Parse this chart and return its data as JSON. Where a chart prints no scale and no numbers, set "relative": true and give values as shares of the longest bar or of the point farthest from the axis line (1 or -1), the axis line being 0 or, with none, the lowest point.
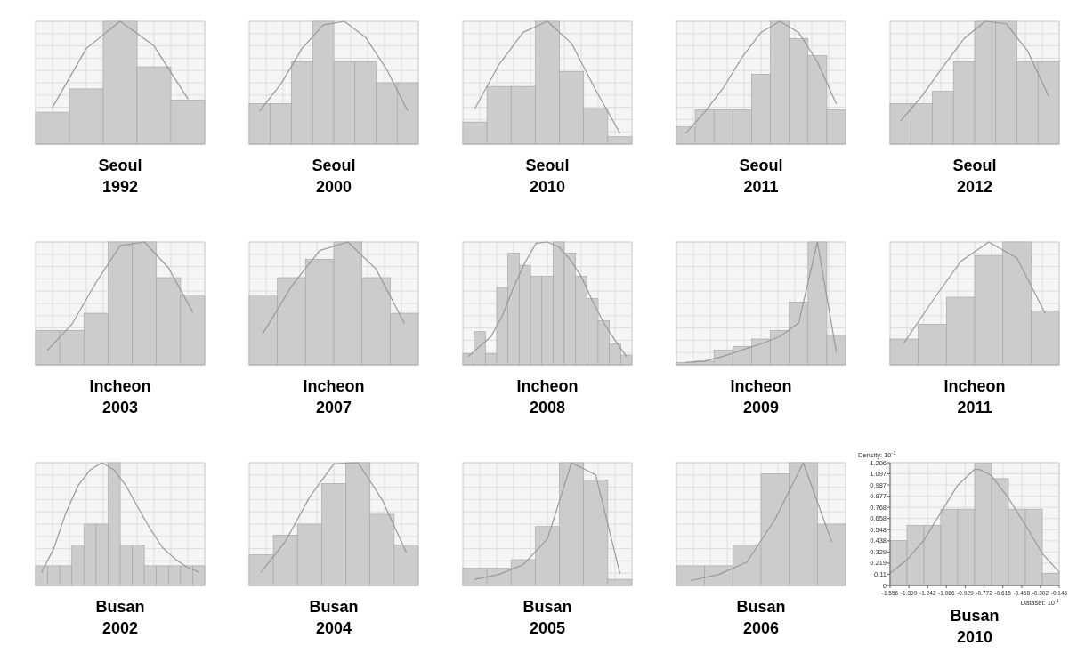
{
  "chart_data": [
    {
      "type": "bar",
      "title": "Seoul",
      "subtitle": "1992",
      "relative": true,
      "grid": true,
      "categories": [
        null,
        null,
        null,
        null,
        null
      ],
      "color": "#cccccc",
      "values": [
        0.26,
        0.45,
        1,
        0.63,
        0.36
      ]
    },
    {
      "type": "line",
      "relative": true,
      "categories": [
        null,
        null,
        null,
        null,
        null
      ],
      "color": "#999999",
      "values": [
        0.3,
        0.78,
        1,
        0.8,
        0.37
      ]
    },
    {
      "type": "bar",
      "title": "Seoul",
      "subtitle": "2000",
      "relative": true,
      "grid": true,
      "categories": [
        null,
        null,
        null,
        null,
        null,
        null,
        null,
        null
      ],
      "color": "#cccccc",
      "values": [
        0.33,
        0.33,
        0.67,
        1,
        0.67,
        0.67,
        0.5,
        0.5
      ]
    },
    {
      "type": "line",
      "relative": true,
      "categories": [
        null,
        null,
        null,
        null,
        null,
        null,
        null,
        null
      ],
      "color": "#999999",
      "values": [
        0.27,
        0.49,
        0.78,
        0.97,
        1,
        0.87,
        0.61,
        0.27
      ]
    },
    {
      "type": "bar",
      "title": "Seoul",
      "subtitle": "2010",
      "relative": true,
      "grid": true,
      "categories": [
        null,
        null,
        null,
        null,
        null,
        null,
        null
      ],
      "color": "#cccccc",
      "values": [
        0.18,
        0.47,
        0.47,
        1,
        0.59,
        0.29,
        0.06
      ]
    },
    {
      "type": "line",
      "relative": true,
      "categories": [
        null,
        null,
        null,
        null,
        null,
        null,
        null
      ],
      "color": "#999999",
      "values": [
        0.29,
        0.65,
        0.91,
        1,
        0.82,
        0.44,
        0.09
      ]
    },
    {
      "type": "bar",
      "title": "Seoul",
      "subtitle": "2011",
      "relative": true,
      "grid": true,
      "categories": [
        null,
        null,
        null,
        null,
        null,
        null,
        null,
        null,
        null
      ],
      "color": "#cccccc",
      "values": [
        0.14,
        0.28,
        0.28,
        0.28,
        0.57,
        1,
        0.86,
        0.72,
        0.28
      ]
    },
    {
      "type": "line",
      "relative": true,
      "categories": [
        null,
        null,
        null,
        null,
        null,
        null,
        null,
        null,
        null
      ],
      "color": "#999999",
      "values": [
        0.09,
        0.26,
        0.46,
        0.71,
        0.91,
        1,
        0.91,
        0.67,
        0.33
      ]
    },
    {
      "type": "bar",
      "title": "Seoul",
      "subtitle": "2012",
      "relative": true,
      "grid": true,
      "categories": [
        null,
        null,
        null,
        null,
        null,
        null,
        null,
        null
      ],
      "color": "#cccccc",
      "values": [
        0.33,
        0.33,
        0.43,
        0.67,
        1,
        1,
        0.67,
        0.67
      ]
    },
    {
      "type": "line",
      "relative": true,
      "categories": [
        null,
        null,
        null,
        null,
        null,
        null,
        null,
        null
      ],
      "color": "#999999",
      "values": [
        0.19,
        0.39,
        0.63,
        0.86,
        1,
        0.98,
        0.76,
        0.39
      ]
    },
    {
      "type": "bar",
      "title": "Incheon",
      "subtitle": "2003",
      "relative": true,
      "grid": true,
      "categories": [
        null,
        null,
        null,
        null,
        null,
        null,
        null
      ],
      "color": "#cccccc",
      "values": [
        0.28,
        0.28,
        0.42,
        1,
        1,
        0.71,
        0.57
      ]
    },
    {
      "type": "line",
      "relative": true,
      "categories": [
        null,
        null,
        null,
        null,
        null,
        null,
        null
      ],
      "color": "#999999",
      "values": [
        0.12,
        0.33,
        0.67,
        0.97,
        1,
        0.79,
        0.43
      ]
    },
    {
      "type": "bar",
      "title": "Incheon",
      "subtitle": "2007",
      "relative": true,
      "grid": true,
      "categories": [
        null,
        null,
        null,
        null,
        null,
        null
      ],
      "color": "#cccccc",
      "values": [
        0.57,
        0.71,
        0.86,
        1,
        0.71,
        0.42
      ]
    },
    {
      "type": "line",
      "relative": true,
      "categories": [
        null,
        null,
        null,
        null,
        null,
        null
      ],
      "color": "#999999",
      "values": [
        0.26,
        0.64,
        0.93,
        1,
        0.78,
        0.34
      ]
    },
    {
      "type": "bar",
      "title": "Incheon",
      "subtitle": "2008",
      "relative": true,
      "grid": true,
      "categories": [
        null,
        null,
        null,
        null,
        null,
        null,
        null,
        null,
        null,
        null,
        null,
        null,
        null,
        null,
        null
      ],
      "color": "#cccccc",
      "values": [
        0.09,
        0.27,
        0.09,
        0.63,
        0.91,
        0.81,
        0.72,
        0.72,
        1,
        0.91,
        0.72,
        0.54,
        0.36,
        0.17,
        0.08
      ]
    },
    {
      "type": "line",
      "relative": true,
      "categories": [
        null,
        null,
        null,
        null,
        null,
        null,
        null,
        null,
        null,
        null,
        null,
        null,
        null,
        null,
        null
      ],
      "color": "#999999",
      "values": [
        0.07,
        0.15,
        0.23,
        0.4,
        0.63,
        0.83,
        0.99,
        1,
        0.96,
        0.86,
        0.72,
        0.52,
        0.34,
        0.2,
        0.07
      ]
    },
    {
      "type": "bar",
      "title": "Incheon",
      "subtitle": "2009",
      "relative": true,
      "grid": true,
      "categories": [
        null,
        null,
        null,
        null,
        null,
        null,
        null,
        null,
        null
      ],
      "color": "#cccccc",
      "values": [
        0.02,
        0.03,
        0.12,
        0.15,
        0.21,
        0.28,
        0.51,
        1,
        0.24
      ]
    },
    {
      "type": "line",
      "relative": true,
      "categories": [
        null,
        null,
        null,
        null,
        null,
        null,
        null,
        null,
        null
      ],
      "color": "#999999",
      "values": [
        0.02,
        0.03,
        0.07,
        0.12,
        0.17,
        0.23,
        0.34,
        1,
        0.11
      ]
    },
    {
      "type": "bar",
      "title": "Incheon",
      "subtitle": "2011",
      "relative": true,
      "grid": true,
      "categories": [
        null,
        null,
        null,
        null,
        null,
        null
      ],
      "color": "#cccccc",
      "values": [
        0.21,
        0.33,
        0.55,
        0.89,
        1,
        0.44
      ]
    },
    {
      "type": "line",
      "relative": true,
      "categories": [
        null,
        null,
        null,
        null,
        null,
        null
      ],
      "color": "#999999",
      "values": [
        0.18,
        0.52,
        0.84,
        1,
        0.87,
        0.42
      ]
    },
    {
      "type": "bar",
      "title": "Busan",
      "subtitle": "2002",
      "relative": true,
      "grid": true,
      "categories": [
        null,
        null,
        null,
        null,
        null,
        null,
        null,
        null,
        null,
        null,
        null,
        null,
        null,
        null
      ],
      "color": "#cccccc",
      "values": [
        0.16,
        0.16,
        0.16,
        0.33,
        0.5,
        0.5,
        1,
        0.33,
        0.33,
        0.16,
        0.16,
        0.16,
        0.16,
        0.16
      ]
    },
    {
      "type": "line",
      "relative": true,
      "categories": [
        null,
        null,
        null,
        null,
        null,
        null,
        null,
        null,
        null,
        null,
        null,
        null,
        null,
        null
      ],
      "color": "#999999",
      "values": [
        0.11,
        0.3,
        0.59,
        0.81,
        0.94,
        1,
        0.94,
        0.81,
        0.63,
        0.46,
        0.31,
        0.22,
        0.15,
        0.11
      ]
    },
    {
      "type": "bar",
      "title": "Busan",
      "subtitle": "2004",
      "relative": true,
      "grid": true,
      "categories": [
        null,
        null,
        null,
        null,
        null,
        null,
        null
      ],
      "color": "#cccccc",
      "values": [
        0.25,
        0.41,
        0.5,
        0.83,
        1,
        0.58,
        0.33
      ]
    },
    {
      "type": "line",
      "relative": true,
      "categories": [
        null,
        null,
        null,
        null,
        null,
        null,
        null
      ],
      "color": "#999999",
      "values": [
        0.11,
        0.36,
        0.72,
        0.99,
        1,
        0.7,
        0.27
      ]
    },
    {
      "type": "bar",
      "title": "Busan",
      "subtitle": "2005",
      "relative": true,
      "grid": true,
      "categories": [
        null,
        null,
        null,
        null,
        null,
        null,
        null
      ],
      "color": "#cccccc",
      "values": [
        0.14,
        0.14,
        0.21,
        0.48,
        1,
        0.86,
        0.05
      ]
    },
    {
      "type": "line",
      "relative": true,
      "categories": [
        null,
        null,
        null,
        null,
        null,
        null,
        null
      ],
      "color": "#999999",
      "values": [
        0.05,
        0.09,
        0.17,
        0.38,
        1,
        0.9,
        0.1
      ]
    },
    {
      "type": "bar",
      "title": "Busan",
      "subtitle": "2006",
      "relative": true,
      "grid": true,
      "categories": [
        null,
        null,
        null,
        null,
        null,
        null
      ],
      "color": "#cccccc",
      "values": [
        0.16,
        0.16,
        0.33,
        0.91,
        1,
        0.5
      ]
    },
    {
      "type": "line",
      "relative": true,
      "categories": [
        null,
        null,
        null,
        null,
        null,
        null
      ],
      "color": "#999999",
      "values": [
        0.04,
        0.09,
        0.19,
        0.54,
        1,
        0.36
      ]
    },
    {
      "type": "histogram",
      "title": "Busan",
      "subtitle": "2010",
      "ylabel": "Density: 10$^{-1}$",
      "xlabel": "Dataset: 10$^{-1}$",
      "grid": true,
      "bins": [
        -1.556,
        -1.415,
        -1.274,
        -1.133,
        -0.992,
        -0.851,
        -0.709,
        -0.568,
        -0.427,
        -0.286,
        -0.145
      ],
      "xlim": [
        -1.556,
        -0.145
      ],
      "xticks": [
        -1.556,
        -1.399,
        -1.242,
        -1.086,
        -0.929,
        -0.772,
        -0.615,
        -0.458,
        -0.302,
        -0.145
      ],
      "ylim": [
        0,
        1.206
      ],
      "yticks": [
        0,
        0.11,
        0.219,
        0.329,
        0.438,
        0.548,
        0.658,
        0.768,
        0.877,
        0.987,
        1.097,
        1.206
      ],
      "series": [
        {
          "color": "#cccccc",
          "values": [
            0.44,
            0.59,
            0.59,
            0.75,
            0.75,
            1.2,
            1.05,
            0.75,
            0.75,
            0.12
          ]
        },
        {
          "type": "line",
          "color": "#999999",
          "x": [
            -1.556,
            -1.418,
            -1.276,
            -1.136,
            -0.994,
            -0.852,
            -0.81,
            -0.712,
            -0.569,
            -0.425,
            -0.283,
            -0.145
          ],
          "values": [
            0.12,
            0.25,
            0.44,
            0.71,
            0.98,
            1.14,
            1.14,
            1.08,
            0.86,
            0.59,
            0.31,
            0.13
          ]
        }
      ]
    }
  ]
}
